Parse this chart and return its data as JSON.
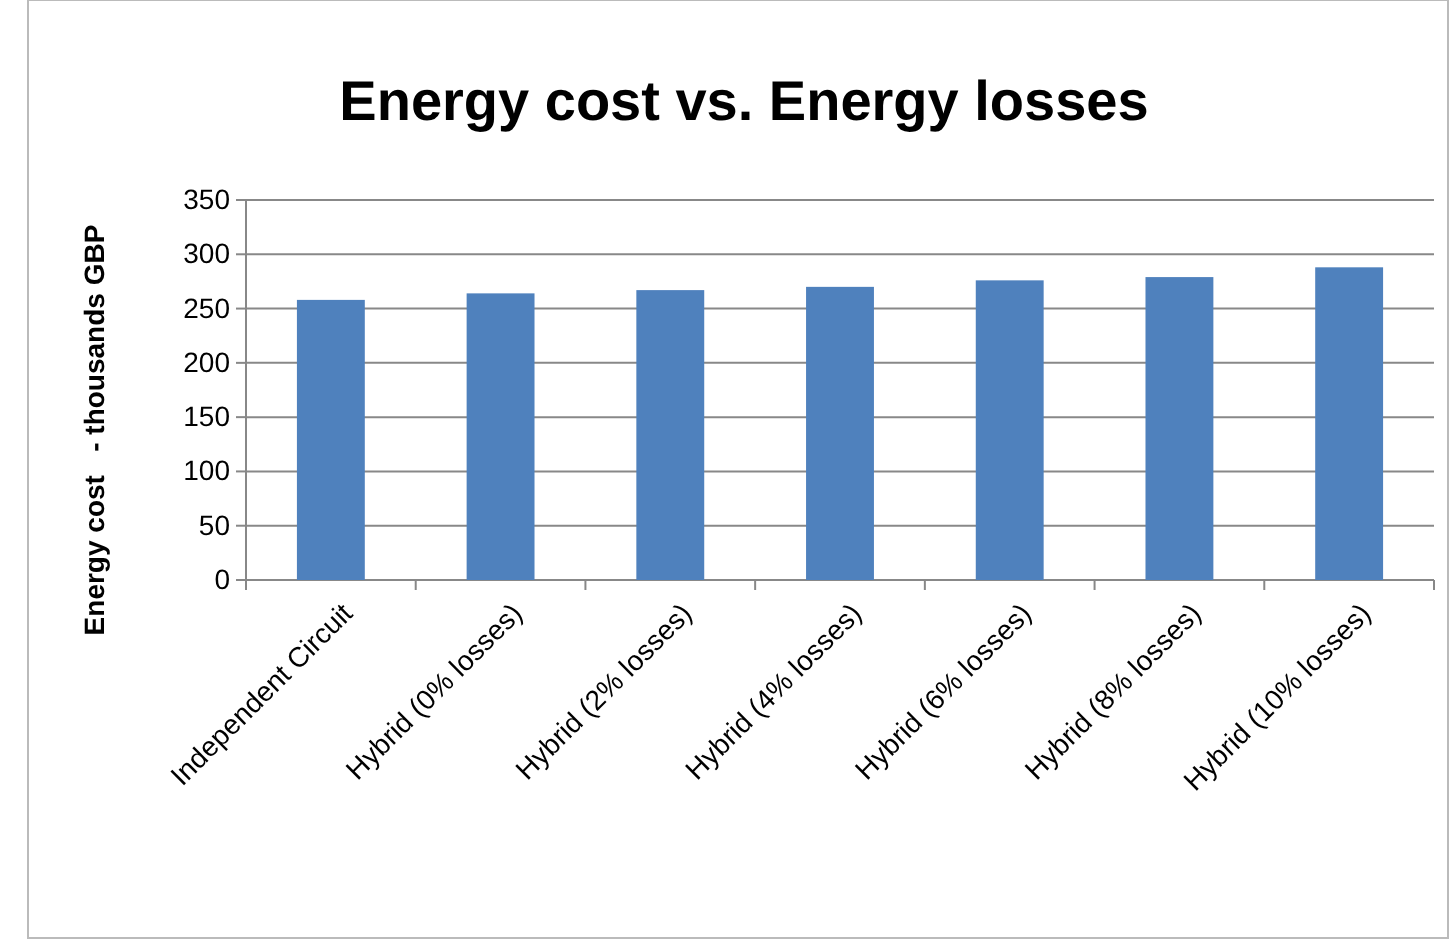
{
  "chart_data": {
    "type": "bar",
    "title": "Energy cost vs. Energy losses",
    "ylabel": "Energy cost   - thousands GBP",
    "categories": [
      "Independent Circuit",
      "Hybrid (0% losses)",
      "Hybrid (2% losses)",
      "Hybrid (4% losses)",
      "Hybrid (6% losses)",
      "Hybrid (8% losses)",
      "Hybrid (10% losses)"
    ],
    "values": [
      258,
      264,
      267,
      270,
      276,
      279,
      288
    ],
    "color": "#4f81bd",
    "ylim": [
      0,
      350
    ],
    "yticks": [
      0,
      50,
      100,
      150,
      200,
      250,
      300,
      350
    ],
    "grid": "y",
    "legend": false
  }
}
